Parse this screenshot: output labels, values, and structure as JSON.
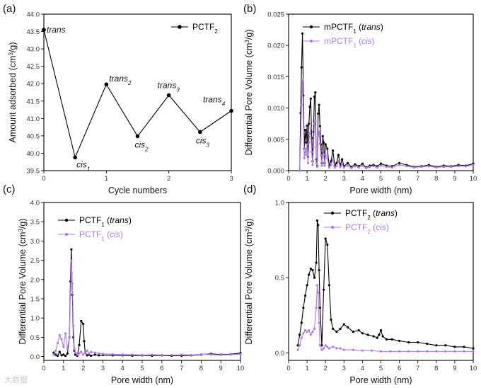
{
  "colors": {
    "trans": "#000000",
    "cis": "#b07ae8"
  },
  "watermark": "大数据",
  "chart_data": [
    {
      "id": "a",
      "type": "line",
      "panel_label": "(a)",
      "xlabel": "Cycle numbers",
      "ylabel_main": "Amount adsorbed (cm",
      "ylabel_sup": "3",
      "ylabel_tail": "/g)",
      "xlim": [
        0,
        3
      ],
      "ylim": [
        39.5,
        44.0
      ],
      "xticks": [
        0,
        1,
        2,
        3
      ],
      "yticks": [
        39.5,
        40.0,
        40.5,
        41.0,
        41.5,
        42.0,
        42.5,
        43.0,
        43.5,
        44.0
      ],
      "ytick_labels": [
        "39.5",
        "40.0",
        "40.5",
        "41.0",
        "41.5",
        "42.0",
        "42.5",
        "43.0",
        "43.5",
        "44.0"
      ],
      "legend": [
        {
          "main": "PCTF",
          "sub": "2",
          "tail": ""
        }
      ],
      "series": [
        {
          "name": "PCTF2",
          "x": [
            0,
            0.5,
            1.0,
            1.5,
            2.0,
            2.5,
            3.0
          ],
          "y": [
            43.55,
            39.88,
            41.98,
            40.49,
            41.67,
            40.61,
            41.22
          ]
        }
      ],
      "annotations": [
        {
          "main": "trans",
          "sub": "",
          "x": 0.0,
          "y": 43.55
        },
        {
          "main": "cis",
          "sub": "1",
          "x": 0.5,
          "y": 39.88
        },
        {
          "main": "trans",
          "sub": "2",
          "x": 1.0,
          "y": 41.98
        },
        {
          "main": "cis",
          "sub": "2",
          "x": 1.5,
          "y": 40.49
        },
        {
          "main": "trans",
          "sub": "3",
          "x": 2.0,
          "y": 41.67
        },
        {
          "main": "cis",
          "sub": "3",
          "x": 2.5,
          "y": 40.61
        },
        {
          "main": "trans",
          "sub": "4",
          "x": 3.0,
          "y": 41.22
        }
      ]
    },
    {
      "id": "b",
      "type": "line",
      "panel_label": "(b)",
      "xlabel": "Pore width (nm)",
      "ylabel_main": "Differential Pore Volume (cm",
      "ylabel_sup": "3",
      "ylabel_tail": "/g)",
      "xlim": [
        0,
        10
      ],
      "ylim": [
        0,
        0.025
      ],
      "xticks": [
        0,
        1,
        2,
        3,
        4,
        5,
        6,
        7,
        8,
        9,
        10
      ],
      "yticks": [
        0,
        0.005,
        0.01,
        0.015,
        0.02,
        0.025
      ],
      "ytick_labels": [
        "0.000",
        "0.005",
        "0.010",
        "0.015",
        "0.020",
        "0.025"
      ],
      "legend": [
        {
          "main": "mPCTF",
          "sub": "1",
          "tail": " (trans)"
        },
        {
          "main": "mPCTF",
          "sub": "1",
          "tail": " (cis)"
        }
      ],
      "series": [
        {
          "name": "mPCTF1 (trans)",
          "x": [
            0.6,
            0.65,
            0.7,
            0.75,
            0.8,
            0.85,
            0.9,
            0.95,
            1.0,
            1.05,
            1.1,
            1.15,
            1.2,
            1.25,
            1.3,
            1.35,
            1.4,
            1.45,
            1.5,
            1.55,
            1.6,
            1.65,
            1.7,
            1.75,
            1.8,
            1.85,
            1.9,
            1.95,
            2.0,
            2.1,
            2.2,
            2.3,
            2.4,
            2.5,
            2.6,
            2.7,
            2.8,
            2.9,
            3.0,
            3.2,
            3.4,
            3.6,
            3.8,
            4.0,
            4.2,
            4.4,
            4.6,
            4.8,
            5.0,
            5.3,
            5.6,
            6.0,
            6.4,
            6.8,
            7.2,
            7.6,
            8.0,
            8.4,
            8.8,
            9.2,
            9.6,
            10.0
          ],
          "y": [
            0.0,
            0.0092,
            0.0165,
            0.0219,
            0.012,
            0.0035,
            0.0065,
            0.0045,
            0.0072,
            0.0022,
            0.0075,
            0.0102,
            0.0115,
            0.0052,
            0.0015,
            0.0062,
            0.0118,
            0.0125,
            0.0018,
            0.0008,
            0.0091,
            0.0105,
            0.0071,
            0.0042,
            0.0012,
            0.0055,
            0.0045,
            0.0012,
            0.0042,
            0.0035,
            0.0008,
            0.0015,
            0.0032,
            0.0008,
            0.0012,
            0.0025,
            0.0009,
            0.0018,
            0.0007,
            0.0012,
            0.0006,
            0.001,
            0.0007,
            0.0011,
            0.0005,
            0.0008,
            0.0009,
            0.0007,
            0.0011,
            0.0008,
            0.0007,
            0.0012,
            0.0009,
            0.0006,
            0.0007,
            0.0009,
            0.0006,
            0.0008,
            0.0007,
            0.0009,
            0.0008,
            0.0011
          ]
        },
        {
          "name": "mPCTF1 (cis)",
          "x": [
            0.6,
            0.65,
            0.7,
            0.75,
            0.8,
            0.85,
            0.9,
            0.95,
            1.0,
            1.05,
            1.1,
            1.15,
            1.2,
            1.25,
            1.3,
            1.35,
            1.4,
            1.45,
            1.5,
            1.55,
            1.6,
            1.65,
            1.7,
            1.75,
            1.8,
            1.85,
            1.9,
            1.95,
            2.0,
            2.1,
            2.2,
            2.3,
            2.4,
            2.5,
            2.6,
            2.7,
            2.8,
            2.9,
            3.0,
            3.2,
            3.4,
            3.6,
            3.8,
            4.0,
            4.2,
            4.4,
            4.6,
            4.8,
            5.0,
            5.3,
            5.6,
            6.0,
            6.4,
            6.8,
            7.2,
            7.6,
            8.0,
            8.4,
            8.8,
            9.2,
            9.6,
            10.0
          ],
          "y": [
            0.0,
            0.005,
            0.0105,
            0.0145,
            0.0085,
            0.002,
            0.0035,
            0.0025,
            0.0042,
            0.0012,
            0.0045,
            0.006,
            0.0068,
            0.003,
            0.0009,
            0.0038,
            0.0075,
            0.008,
            0.0012,
            0.0006,
            0.0055,
            0.0062,
            0.0043,
            0.0025,
            0.0008,
            0.0032,
            0.0026,
            0.0008,
            0.0025,
            0.002,
            0.0005,
            0.0009,
            0.0018,
            0.0005,
            0.0007,
            0.0015,
            0.0006,
            0.001,
            0.0005,
            0.0008,
            0.0004,
            0.0007,
            0.0005,
            0.0008,
            0.0004,
            0.0006,
            0.0007,
            0.0005,
            0.0008,
            0.0006,
            0.0005,
            0.0009,
            0.0007,
            0.0005,
            0.0006,
            0.0007,
            0.0005,
            0.0006,
            0.0006,
            0.0007,
            0.0007,
            0.0009
          ]
        }
      ]
    },
    {
      "id": "c",
      "type": "line",
      "panel_label": "(c)",
      "xlabel": "Pore width (nm)",
      "ylabel_main": "Differential Pore Volume (cm",
      "ylabel_sup": "3",
      "ylabel_tail": "/g)",
      "xlim": [
        0,
        10
      ],
      "ylim": [
        -0.1,
        4.0
      ],
      "xticks": [
        0,
        1,
        2,
        3,
        4,
        5,
        6,
        7,
        8,
        9,
        10
      ],
      "yticks": [
        0,
        0.5,
        1.0,
        1.5,
        2.0,
        2.5,
        3.0,
        3.5,
        4.0
      ],
      "ytick_labels": [
        "0.0",
        "0.5",
        "1.0",
        "1.5",
        "2.0",
        "2.5",
        "3.0",
        "3.5",
        "4.0"
      ],
      "legend": [
        {
          "main": "PCTF",
          "sub": "1",
          "tail": " (trans)"
        },
        {
          "main": "PCTF",
          "sub": "1",
          "tail": " (cis)"
        }
      ],
      "series": [
        {
          "name": "PCTF1 (trans)",
          "x": [
            0.5,
            0.6,
            0.7,
            0.8,
            0.9,
            1.0,
            1.1,
            1.2,
            1.3,
            1.35,
            1.4,
            1.45,
            1.5,
            1.55,
            1.6,
            1.7,
            1.8,
            1.9,
            2.0,
            2.05,
            2.1,
            2.2,
            2.3,
            2.4,
            2.6,
            2.8,
            3.0,
            3.5,
            4.0,
            4.5,
            5.0,
            5.5,
            6.0,
            6.5,
            7.0,
            7.5,
            8.0,
            8.5,
            9.0,
            9.5,
            10.0
          ],
          "y": [
            0.1,
            0.05,
            0.02,
            0.12,
            0.03,
            0.05,
            0.02,
            0.08,
            0.5,
            1.95,
            2.78,
            1.6,
            0.5,
            0.15,
            0.05,
            0.02,
            0.3,
            0.92,
            0.85,
            0.4,
            0.1,
            0.03,
            0.05,
            0.02,
            0.05,
            0.03,
            0.04,
            0.03,
            0.03,
            0.02,
            0.03,
            0.02,
            0.03,
            0.02,
            0.02,
            0.03,
            0.05,
            0.07,
            0.05,
            0.06,
            0.09
          ]
        },
        {
          "name": "PCTF1 (cis)",
          "x": [
            0.5,
            0.6,
            0.7,
            0.8,
            0.9,
            1.0,
            1.1,
            1.2,
            1.3,
            1.35,
            1.4,
            1.45,
            1.5,
            1.55,
            1.6,
            1.7,
            1.8,
            1.9,
            2.0,
            2.1,
            2.2,
            2.3,
            2.4,
            2.6,
            2.8,
            3.0,
            3.5,
            4.0,
            4.5,
            5.0,
            5.5,
            6.0,
            6.5,
            7.0,
            7.5,
            8.0,
            8.5,
            9.0,
            9.5,
            10.0
          ],
          "y": [
            0.05,
            0.15,
            0.35,
            0.55,
            0.45,
            0.25,
            0.6,
            0.2,
            0.5,
            1.6,
            2.5,
            1.9,
            0.8,
            0.2,
            0.1,
            0.05,
            0.08,
            0.12,
            0.05,
            0.1,
            0.15,
            0.08,
            0.12,
            0.1,
            0.08,
            0.07,
            0.06,
            0.05,
            0.05,
            0.04,
            0.05,
            0.04,
            0.04,
            0.05,
            0.04,
            0.06,
            0.05,
            0.04,
            0.05,
            0.06
          ]
        }
      ]
    },
    {
      "id": "d",
      "type": "line",
      "panel_label": "(d)",
      "xlabel": "Pore width (nm)",
      "ylabel_main": "Differential Pore Volume (cm",
      "ylabel_sup": "3",
      "ylabel_tail": "/g)",
      "xlim": [
        0,
        10
      ],
      "ylim": [
        -0.05,
        1.0
      ],
      "xticks": [
        0,
        1,
        2,
        3,
        4,
        5,
        6,
        7,
        8,
        9,
        10
      ],
      "yticks": [
        0,
        0.5,
        1.0
      ],
      "ytick_labels": [
        "0.0",
        "0.5",
        "1.0"
      ],
      "legend": [
        {
          "main": "PCTF",
          "sub": "2",
          "tail": " (trans)"
        },
        {
          "main": "PCTF",
          "sub": "2",
          "tail": " (cis)"
        }
      ],
      "series": [
        {
          "name": "PCTF2 (trans)",
          "x": [
            0.5,
            0.6,
            0.7,
            0.8,
            0.9,
            1.0,
            1.1,
            1.2,
            1.3,
            1.4,
            1.5,
            1.55,
            1.6,
            1.65,
            1.7,
            1.8,
            1.9,
            2.0,
            2.1,
            2.2,
            2.3,
            2.4,
            2.6,
            2.8,
            3.0,
            3.2,
            3.5,
            3.8,
            4.0,
            4.3,
            4.6,
            4.8,
            4.9,
            5.0,
            5.1,
            5.3,
            5.6,
            6.0,
            6.5,
            7.0,
            7.5,
            8.0,
            8.5,
            9.0,
            9.5,
            10.0
          ],
          "y": [
            0.05,
            0.12,
            0.2,
            0.3,
            0.38,
            0.45,
            0.52,
            0.56,
            0.55,
            0.5,
            0.6,
            0.88,
            0.85,
            0.55,
            0.3,
            0.05,
            0.42,
            0.76,
            0.72,
            0.45,
            0.22,
            0.16,
            0.14,
            0.16,
            0.19,
            0.17,
            0.14,
            0.15,
            0.13,
            0.12,
            0.11,
            0.1,
            0.12,
            0.15,
            0.11,
            0.09,
            0.09,
            0.08,
            0.07,
            0.07,
            0.06,
            0.05,
            0.05,
            0.04,
            0.04,
            0.03
          ]
        },
        {
          "name": "PCTF2 (cis)",
          "x": [
            0.5,
            0.6,
            0.7,
            0.8,
            0.9,
            1.0,
            1.1,
            1.2,
            1.3,
            1.4,
            1.5,
            1.55,
            1.6,
            1.65,
            1.7,
            1.8,
            1.9,
            2.0,
            2.1,
            2.2,
            2.4,
            2.6,
            2.8,
            3.0,
            3.5,
            4.0,
            4.5,
            5.0,
            5.5,
            6.0,
            6.5,
            7.0,
            7.5,
            8.0,
            8.5,
            9.0,
            9.5,
            10.0
          ],
          "y": [
            0.02,
            0.05,
            0.1,
            0.13,
            0.15,
            0.14,
            0.15,
            0.12,
            0.14,
            0.16,
            0.3,
            0.45,
            0.4,
            0.2,
            0.05,
            0.02,
            0.03,
            0.05,
            0.04,
            0.03,
            0.04,
            0.03,
            0.03,
            0.02,
            0.02,
            0.015,
            0.015,
            0.01,
            0.01,
            0.01,
            0.01,
            0.01,
            0.01,
            0.01,
            0.01,
            0.01,
            0.01,
            0.01
          ]
        }
      ]
    }
  ]
}
